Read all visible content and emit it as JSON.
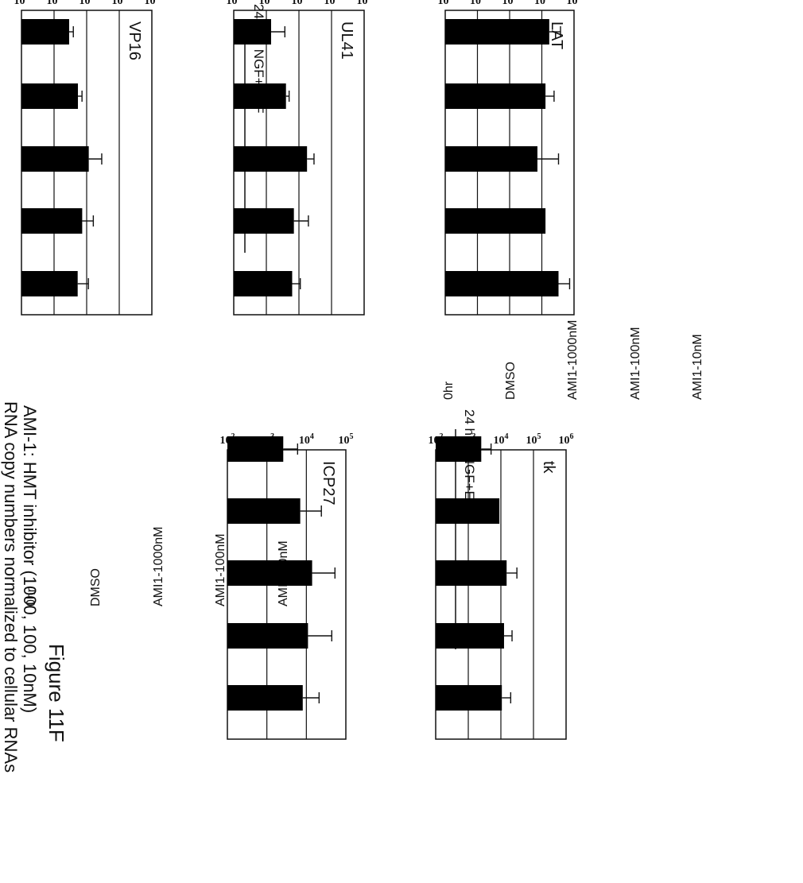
{
  "figure": {
    "title": "Figure 11F",
    "subtitle": "AMI-1: HMT inhibitor (1000, 100, 10nM)",
    "y_axis_label": "RNA copy numbers normalized to cellular RNAs"
  },
  "groups": {
    "condition": "24 hrs; NGF+EGF",
    "categories": [
      "0hr",
      "DMSO",
      "AMI1-1000nM",
      "AMI1-100nM",
      "AMI1-10nM"
    ]
  },
  "chart_data": [
    {
      "type": "bar",
      "gene": "ICP27",
      "scale": "log",
      "ylim": [
        100,
        100000
      ],
      "ticks": [
        {
          "base": "10",
          "exp": "5"
        },
        {
          "base": "10",
          "exp": "4"
        },
        {
          "base": "10",
          "exp": "3"
        },
        {
          "base": "10",
          "exp": "2"
        }
      ],
      "categories": [
        "0hr",
        "DMSO",
        "AMI1-1000nM",
        "AMI1-100nM",
        "AMI1-10nM"
      ],
      "values": [
        2600,
        7000,
        14000,
        11000,
        8100
      ],
      "errors_upper": [
        6000,
        24000,
        53000,
        44000,
        21000
      ]
    },
    {
      "type": "bar",
      "gene": "tk",
      "scale": "log",
      "ylim": [
        100,
        1000000
      ],
      "ticks": [
        {
          "base": "10",
          "exp": "6"
        },
        {
          "base": "10",
          "exp": "5"
        },
        {
          "base": "10",
          "exp": "4"
        },
        {
          "base": "10",
          "exp": "3"
        },
        {
          "base": "10",
          "exp": "2"
        }
      ],
      "categories": [
        "0hr",
        "DMSO",
        "AMI1-1000nM",
        "AMI1-100nM",
        "AMI1-10nM"
      ],
      "values": [
        2500,
        9000,
        15000,
        12500,
        10700
      ],
      "errors_upper": [
        5000,
        0,
        31000,
        22000,
        20000
      ]
    },
    {
      "type": "bar",
      "gene": "VP16",
      "scale": "log",
      "ylim": [
        100,
        1000000
      ],
      "ticks": [
        {
          "base": "10",
          "exp": "6"
        },
        {
          "base": "10",
          "exp": "5"
        },
        {
          "base": "10",
          "exp": "4"
        },
        {
          "base": "10",
          "exp": "3"
        },
        {
          "base": "10",
          "exp": "2"
        }
      ],
      "categories": [
        "0hr",
        "DMSO",
        "AMI1-1000nM",
        "AMI1-100nM",
        "AMI1-10nM"
      ],
      "values": [
        2900,
        5400,
        11600,
        7300,
        5300
      ],
      "errors_upper": [
        3900,
        7200,
        29000,
        16000,
        11300
      ]
    },
    {
      "type": "bar",
      "gene": "UL41",
      "scale": "log",
      "ylim": [
        100,
        1000000
      ],
      "ticks": [
        {
          "base": "10",
          "exp": "6"
        },
        {
          "base": "10",
          "exp": "5"
        },
        {
          "base": "10",
          "exp": "4"
        },
        {
          "base": "10",
          "exp": "3"
        },
        {
          "base": "10",
          "exp": "2"
        }
      ],
      "categories": [
        "0hr",
        "DMSO",
        "AMI1-1000nM",
        "AMI1-100nM",
        "AMI1-10nM"
      ],
      "values": [
        1400,
        4000,
        17700,
        7000,
        6200
      ],
      "errors_upper": [
        3700,
        5000,
        29000,
        19500,
        11000
      ]
    },
    {
      "type": "bar",
      "gene": "LAT",
      "scale": "log",
      "ylim": [
        1000,
        10000000
      ],
      "ticks": [
        {
          "base": "10",
          "exp": "7"
        },
        {
          "base": "10",
          "exp": "6"
        },
        {
          "base": "10",
          "exp": "5"
        },
        {
          "base": "10",
          "exp": "4"
        },
        {
          "base": "10",
          "exp": "3"
        }
      ],
      "categories": [
        "0hr",
        "DMSO",
        "AMI1-1000nM",
        "AMI1-100nM",
        "AMI1-10nM"
      ],
      "values": [
        1700000,
        1300000,
        730000,
        1300000,
        3300000
      ],
      "errors_upper": [
        3800000,
        2400000,
        3300000,
        0,
        7300000
      ]
    }
  ]
}
